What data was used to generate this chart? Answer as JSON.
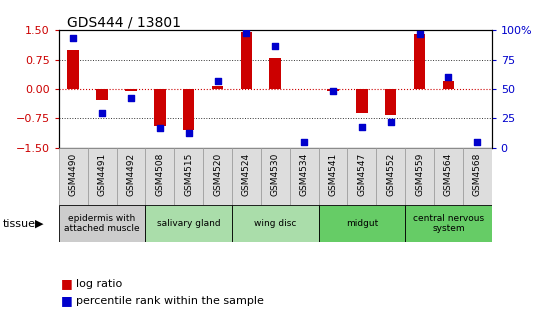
{
  "title": "GDS444 / 13801",
  "samples": [
    "GSM4490",
    "GSM4491",
    "GSM4492",
    "GSM4508",
    "GSM4515",
    "GSM4520",
    "GSM4524",
    "GSM4530",
    "GSM4534",
    "GSM4541",
    "GSM4547",
    "GSM4552",
    "GSM4559",
    "GSM4564",
    "GSM4568"
  ],
  "log_ratio": [
    1.0,
    -0.28,
    -0.05,
    -0.95,
    -1.05,
    0.07,
    1.45,
    0.8,
    0.0,
    -0.05,
    -0.6,
    -0.65,
    1.4,
    0.2,
    0.0
  ],
  "percentile": [
    93,
    30,
    42,
    17,
    13,
    57,
    98,
    87,
    5,
    48,
    18,
    22,
    97,
    60,
    5
  ],
  "ylim_left": [
    -1.5,
    1.5
  ],
  "ylim_right": [
    0,
    100
  ],
  "yticks_left": [
    -1.5,
    -0.75,
    0,
    0.75,
    1.5
  ],
  "yticks_right": [
    0,
    25,
    50,
    75,
    100
  ],
  "ytick_labels_right": [
    "0",
    "25",
    "50",
    "75",
    "100%"
  ],
  "tissue_groups": [
    {
      "label": "epidermis with\nattached muscle",
      "start": 0,
      "end": 2,
      "color": "#cccccc"
    },
    {
      "label": "salivary gland",
      "start": 3,
      "end": 5,
      "color": "#aaddaa"
    },
    {
      "label": "wing disc",
      "start": 6,
      "end": 8,
      "color": "#aaddaa"
    },
    {
      "label": "midgut",
      "start": 9,
      "end": 11,
      "color": "#66cc66"
    },
    {
      "label": "central nervous\nsystem",
      "start": 12,
      "end": 14,
      "color": "#66cc66"
    }
  ],
  "bar_color": "#cc0000",
  "dot_color": "#0000cc",
  "hline0_color": "#cc0000",
  "hline_grid_color": "#333333",
  "bg_color": "#ffffff",
  "tick_color_left": "#cc0000",
  "tick_color_right": "#0000cc",
  "spine_color": "#000000",
  "cell_border_color": "#999999",
  "bar_width": 0.4
}
